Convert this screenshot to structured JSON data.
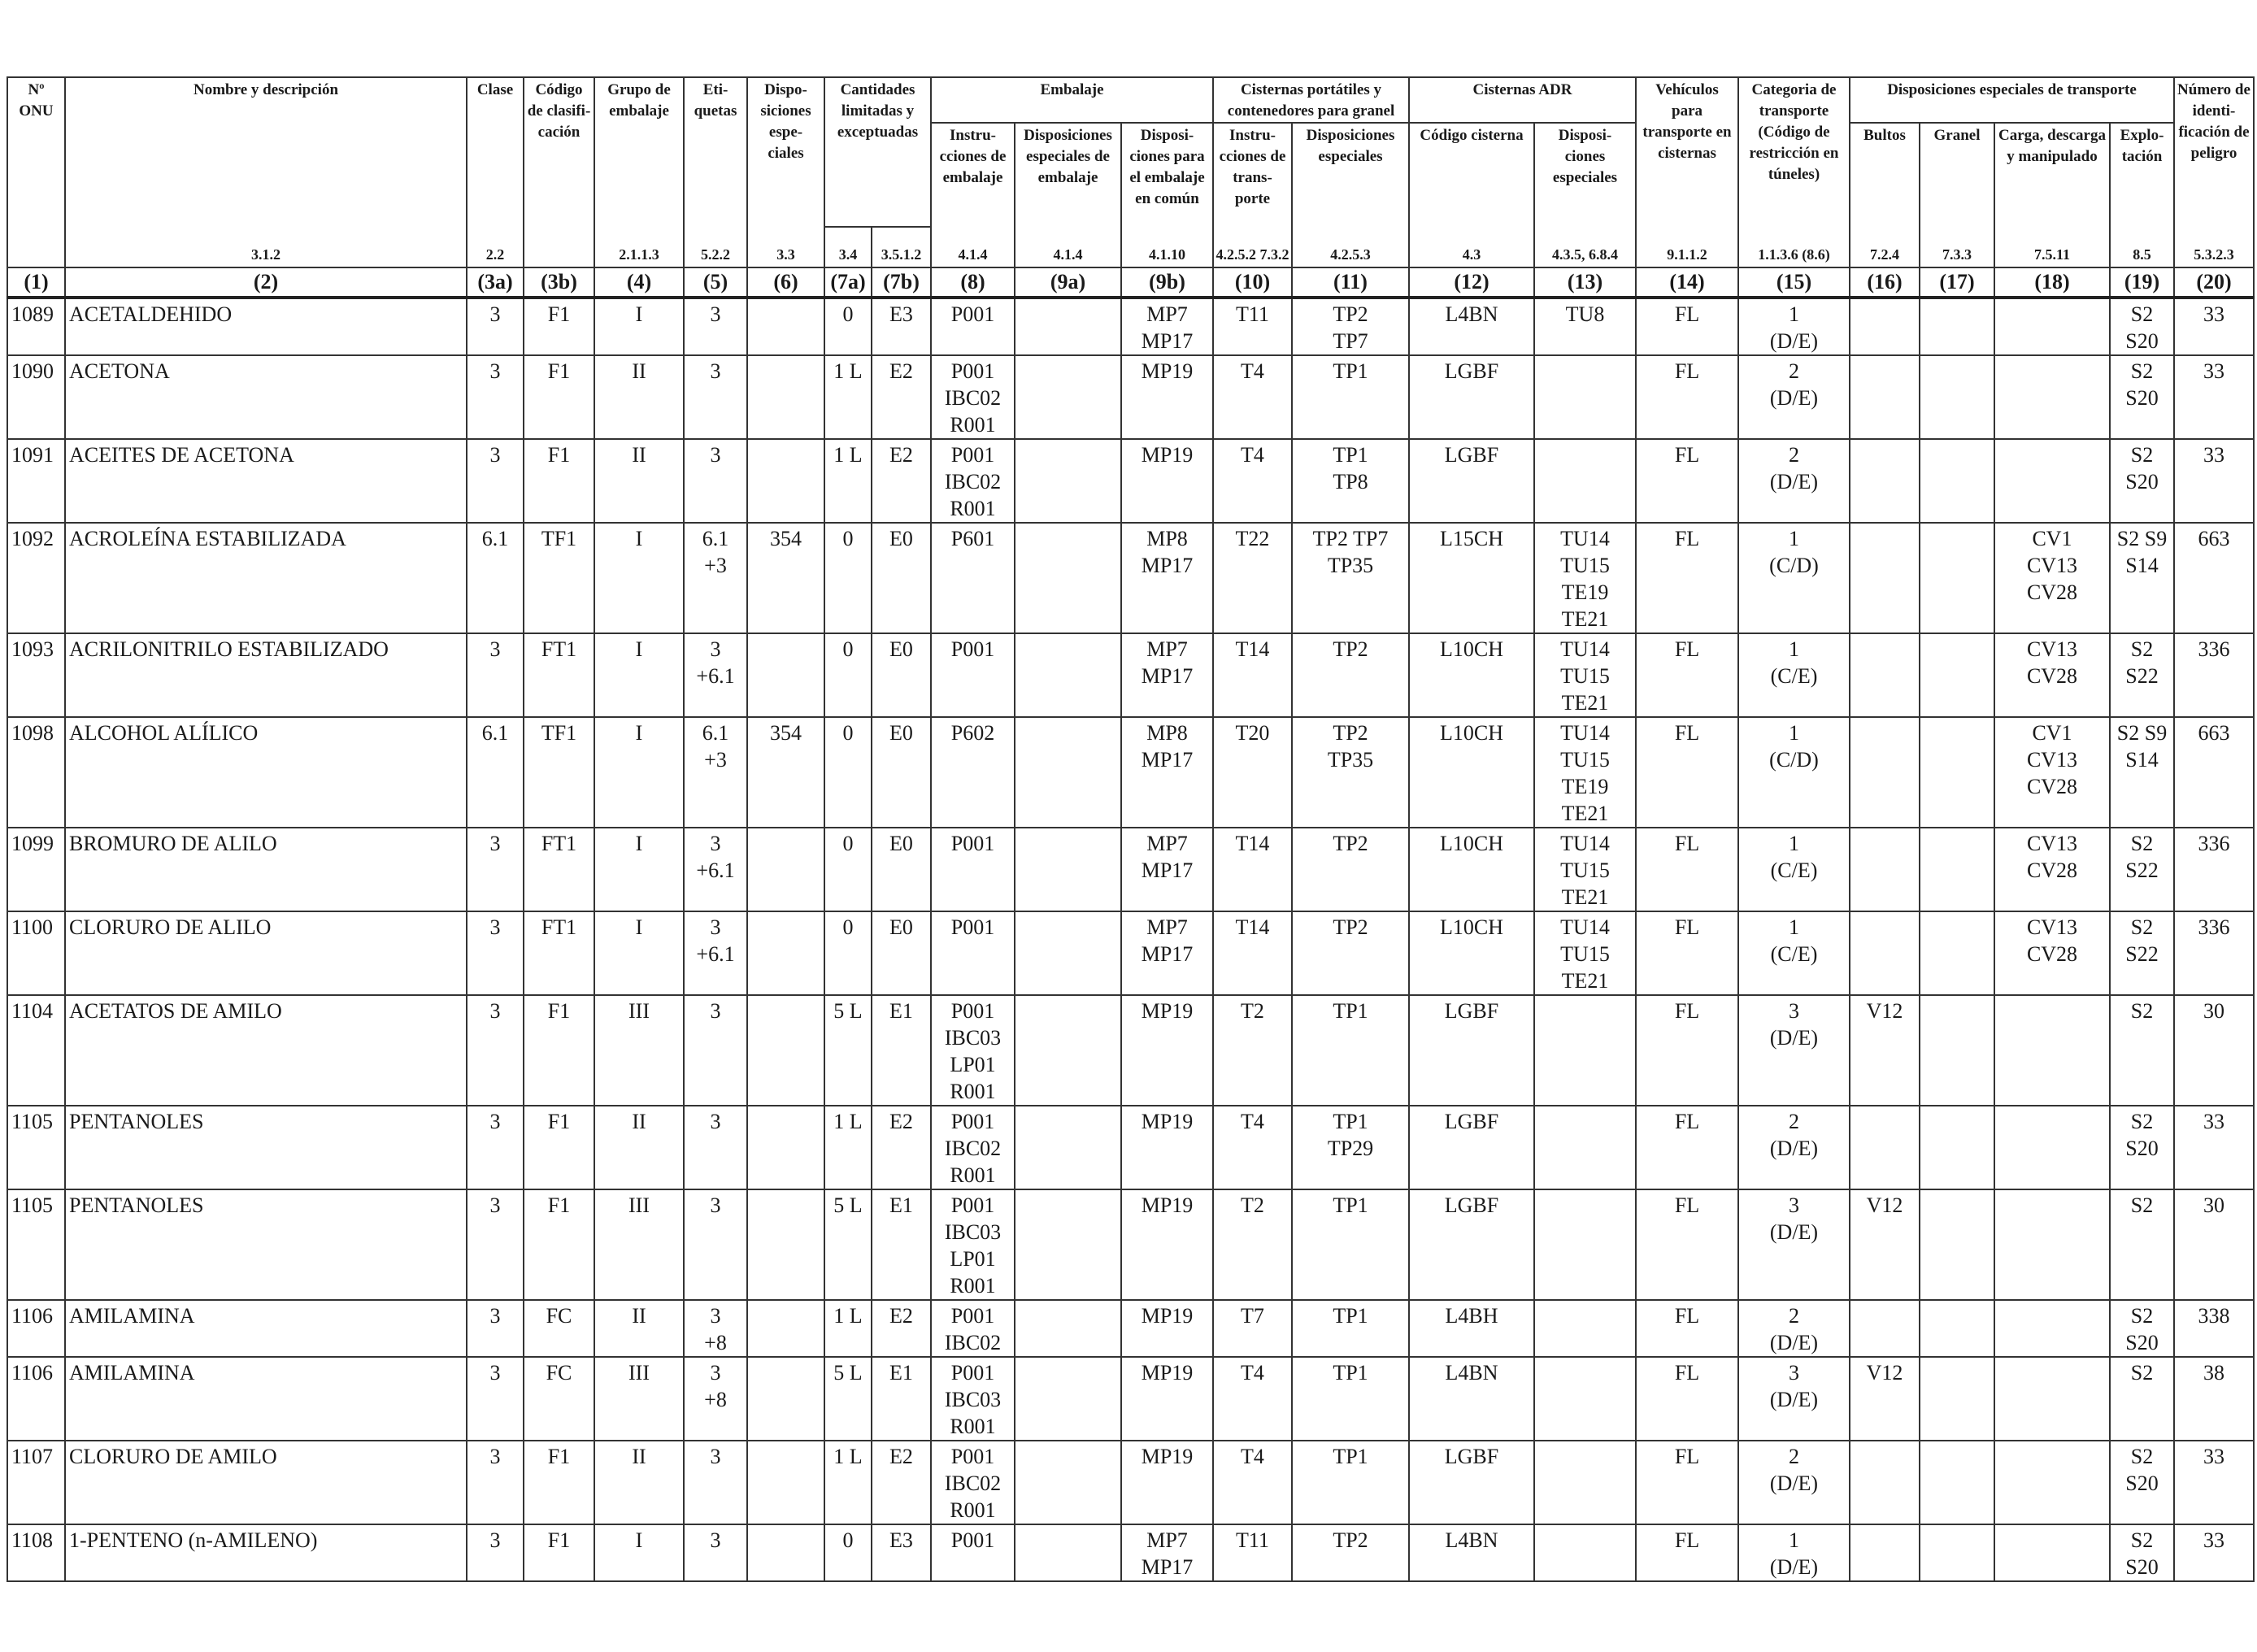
{
  "headers": {
    "c1": "Nº ONU",
    "c2": "Nombre y descripción",
    "c3a": "Clase",
    "c3b": "Código de clasifi- cación",
    "c4": "Grupo de embalaje",
    "c5": "Eti- quetas",
    "c6": "Dispo- siciones espe- ciales",
    "c7": "Cantidades limitadas y exceptuadas",
    "c8_group": "Embalaje",
    "c8": "Instru- cciones de embalaje",
    "c9a": "Disposiciones especiales de embalaje",
    "c9b": "Disposi- ciones para el embalaje en común",
    "c10_group": "Cisternas portátiles y contenedores para granel",
    "c10": "Instru- cciones de trans- porte",
    "c11": "Disposiciones especiales",
    "c12_group": "Cisternas ADR",
    "c12": "Código cisterna",
    "c13": "Disposi- ciones especiales",
    "c14": "Vehículos para transporte en cisternas",
    "c15": "Categoria de transporte (Código de restricción en túneles)",
    "c16_group": "Disposiciones especiales de transporte",
    "c16": "Bultos",
    "c17": "Granel",
    "c18": "Carga, descarga y manipulado",
    "c19": "Explo- tación",
    "c20": "Número de identi- ficación de peligro"
  },
  "refs": {
    "c2": "3.1.2",
    "c3a": "2.2",
    "c4": "2.1.1.3",
    "c5": "5.2.2",
    "c6": "3.3",
    "c7a": "3.4",
    "c7b": "3.5.1.2",
    "c8": "4.1.4",
    "c9a": "4.1.4",
    "c9b": "4.1.10",
    "c10": "4.2.5.2 7.3.2",
    "c11": "4.2.5.3",
    "c12": "4.3",
    "c13": "4.3.5, 6.8.4",
    "c14": "9.1.1.2",
    "c15": "1.1.3.6 (8.6)",
    "c16": "7.2.4",
    "c17": "7.3.3",
    "c18": "7.5.11",
    "c19": "8.5",
    "c20": "5.3.2.3"
  },
  "col_numbers": [
    "(1)",
    "(2)",
    "(3a)",
    "(3b)",
    "(4)",
    "(5)",
    "(6)",
    "(7a)",
    "(7b)",
    "(8)",
    "(9a)",
    "(9b)",
    "(10)",
    "(11)",
    "(12)",
    "(13)",
    "(14)",
    "(15)",
    "(16)",
    "(17)",
    "(18)",
    "(19)",
    "(20)"
  ],
  "rows": [
    [
      "1089",
      "ACETALDEHIDO",
      "3",
      "F1",
      "I",
      "3",
      "",
      "0",
      "E3",
      "P001",
      "",
      "MP7\nMP17",
      "T11",
      "TP2\nTP7",
      "L4BN",
      "TU8",
      "FL",
      "1\n(D/E)",
      "",
      "",
      "",
      "S2\nS20",
      "33"
    ],
    [
      "1090",
      "ACETONA",
      "3",
      "F1",
      "II",
      "3",
      "",
      "1 L",
      "E2",
      "P001\nIBC02\nR001",
      "",
      "MP19",
      "T4",
      "TP1",
      "LGBF",
      "",
      "FL",
      "2\n(D/E)",
      "",
      "",
      "",
      "S2\nS20",
      "33"
    ],
    [
      "1091",
      "ACEITES DE ACETONA",
      "3",
      "F1",
      "II",
      "3",
      "",
      "1 L",
      "E2",
      "P001\nIBC02\nR001",
      "",
      "MP19",
      "T4",
      "TP1\nTP8",
      "LGBF",
      "",
      "FL",
      "2\n(D/E)",
      "",
      "",
      "",
      "S2\nS20",
      "33"
    ],
    [
      "1092",
      "ACROLEÍNA ESTABILIZADA",
      "6.1",
      "TF1",
      "I",
      "6.1\n+3",
      "354",
      "0",
      "E0",
      "P601",
      "",
      "MP8\nMP17",
      "T22",
      "TP2 TP7\nTP35",
      "L15CH",
      "TU14\nTU15\nTE19\nTE21",
      "FL",
      "1\n(C/D)",
      "",
      "",
      "CV1\nCV13\nCV28",
      "S2 S9\nS14",
      "663"
    ],
    [
      "1093",
      "ACRILONITRILO ESTABILIZADO",
      "3",
      "FT1",
      "I",
      "3\n+6.1",
      "",
      "0",
      "E0",
      "P001",
      "",
      "MP7\nMP17",
      "T14",
      "TP2",
      "L10CH",
      "TU14\nTU15\nTE21",
      "FL",
      "1\n(C/E)",
      "",
      "",
      "CV13\nCV28",
      "S2\nS22",
      "336"
    ],
    [
      "1098",
      "ALCOHOL ALÍLICO",
      "6.1",
      "TF1",
      "I",
      "6.1\n+3",
      "354",
      "0",
      "E0",
      "P602",
      "",
      "MP8\nMP17",
      "T20",
      "TP2\nTP35",
      "L10CH",
      "TU14\nTU15\nTE19\nTE21",
      "FL",
      "1\n(C/D)",
      "",
      "",
      "CV1\nCV13\nCV28",
      "S2 S9\nS14",
      "663"
    ],
    [
      "1099",
      "BROMURO DE ALILO",
      "3",
      "FT1",
      "I",
      "3\n+6.1",
      "",
      "0",
      "E0",
      "P001",
      "",
      "MP7\nMP17",
      "T14",
      "TP2",
      "L10CH",
      "TU14\nTU15\nTE21",
      "FL",
      "1\n(C/E)",
      "",
      "",
      "CV13\nCV28",
      "S2\nS22",
      "336"
    ],
    [
      "1100",
      "CLORURO DE ALILO",
      "3",
      "FT1",
      "I",
      "3\n+6.1",
      "",
      "0",
      "E0",
      "P001",
      "",
      "MP7\nMP17",
      "T14",
      "TP2",
      "L10CH",
      "TU14\nTU15\nTE21",
      "FL",
      "1\n(C/E)",
      "",
      "",
      "CV13\nCV28",
      "S2\nS22",
      "336"
    ],
    [
      "1104",
      "ACETATOS DE AMILO",
      "3",
      "F1",
      "III",
      "3",
      "",
      "5 L",
      "E1",
      "P001\nIBC03\nLP01\nR001",
      "",
      "MP19",
      "T2",
      "TP1",
      "LGBF",
      "",
      "FL",
      "3\n(D/E)",
      "V12",
      "",
      "",
      "S2",
      "30"
    ],
    [
      "1105",
      "PENTANOLES",
      "3",
      "F1",
      "II",
      "3",
      "",
      "1 L",
      "E2",
      "P001\nIBC02\nR001",
      "",
      "MP19",
      "T4",
      "TP1\nTP29",
      "LGBF",
      "",
      "FL",
      "2\n(D/E)",
      "",
      "",
      "",
      "S2\nS20",
      "33"
    ],
    [
      "1105",
      "PENTANOLES",
      "3",
      "F1",
      "III",
      "3",
      "",
      "5 L",
      "E1",
      "P001\nIBC03\nLP01\nR001",
      "",
      "MP19",
      "T2",
      "TP1",
      "LGBF",
      "",
      "FL",
      "3\n(D/E)",
      "V12",
      "",
      "",
      "S2",
      "30"
    ],
    [
      "1106",
      "AMILAMINA",
      "3",
      "FC",
      "II",
      "3\n+8",
      "",
      "1 L",
      "E2",
      "P001\nIBC02",
      "",
      "MP19",
      "T7",
      "TP1",
      "L4BH",
      "",
      "FL",
      "2\n(D/E)",
      "",
      "",
      "",
      "S2\nS20",
      "338"
    ],
    [
      "1106",
      "AMILAMINA",
      "3",
      "FC",
      "III",
      "3\n+8",
      "",
      "5 L",
      "E1",
      "P001\nIBC03\nR001",
      "",
      "MP19",
      "T4",
      "TP1",
      "L4BN",
      "",
      "FL",
      "3\n(D/E)",
      "V12",
      "",
      "",
      "S2",
      "38"
    ],
    [
      "1107",
      "CLORURO DE AMILO",
      "3",
      "F1",
      "II",
      "3",
      "",
      "1 L",
      "E2",
      "P001\nIBC02\nR001",
      "",
      "MP19",
      "T4",
      "TP1",
      "LGBF",
      "",
      "FL",
      "2\n(D/E)",
      "",
      "",
      "",
      "S2\nS20",
      "33"
    ],
    [
      "1108",
      "1-PENTENO (n-AMILENO)",
      "3",
      "F1",
      "I",
      "3",
      "",
      "0",
      "E3",
      "P001",
      "",
      "MP7\nMP17",
      "T11",
      "TP2",
      "L4BN",
      "",
      "FL",
      "1\n(D/E)",
      "",
      "",
      "",
      "S2\nS20",
      "33"
    ]
  ]
}
